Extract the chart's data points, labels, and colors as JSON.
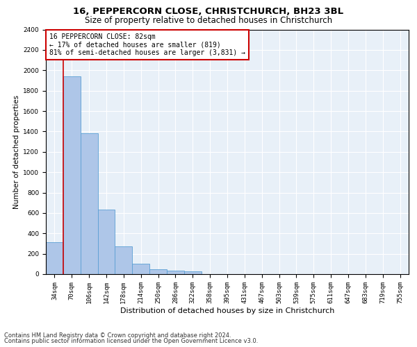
{
  "title1": "16, PEPPERCORN CLOSE, CHRISTCHURCH, BH23 3BL",
  "title2": "Size of property relative to detached houses in Christchurch",
  "xlabel": "Distribution of detached houses by size in Christchurch",
  "ylabel": "Number of detached properties",
  "footnote1": "Contains HM Land Registry data © Crown copyright and database right 2024.",
  "footnote2": "Contains public sector information licensed under the Open Government Licence v3.0.",
  "bin_labels": [
    "34sqm",
    "70sqm",
    "106sqm",
    "142sqm",
    "178sqm",
    "214sqm",
    "250sqm",
    "286sqm",
    "322sqm",
    "358sqm",
    "395sqm",
    "431sqm",
    "467sqm",
    "503sqm",
    "539sqm",
    "575sqm",
    "611sqm",
    "647sqm",
    "683sqm",
    "719sqm",
    "755sqm"
  ],
  "bar_values": [
    315,
    1940,
    1380,
    630,
    270,
    100,
    48,
    32,
    25,
    0,
    0,
    0,
    0,
    0,
    0,
    0,
    0,
    0,
    0,
    0,
    0
  ],
  "bar_color": "#aec6e8",
  "bar_edge_color": "#5a9fd4",
  "property_line_color": "#cc0000",
  "annotation_line1": "16 PEPPERCORN CLOSE: 82sqm",
  "annotation_line2": "← 17% of detached houses are smaller (819)",
  "annotation_line3": "81% of semi-detached houses are larger (3,831) →",
  "annotation_box_color": "#cc0000",
  "ylim_max": 2400,
  "yticks": [
    0,
    200,
    400,
    600,
    800,
    1000,
    1200,
    1400,
    1600,
    1800,
    2000,
    2200,
    2400
  ],
  "bg_color": "#e8f0f8",
  "grid_color": "#ffffff",
  "title1_fontsize": 9.5,
  "title2_fontsize": 8.5,
  "xlabel_fontsize": 8,
  "ylabel_fontsize": 7.5,
  "tick_fontsize": 6.5,
  "annot_fontsize": 7,
  "footnote_fontsize": 6
}
